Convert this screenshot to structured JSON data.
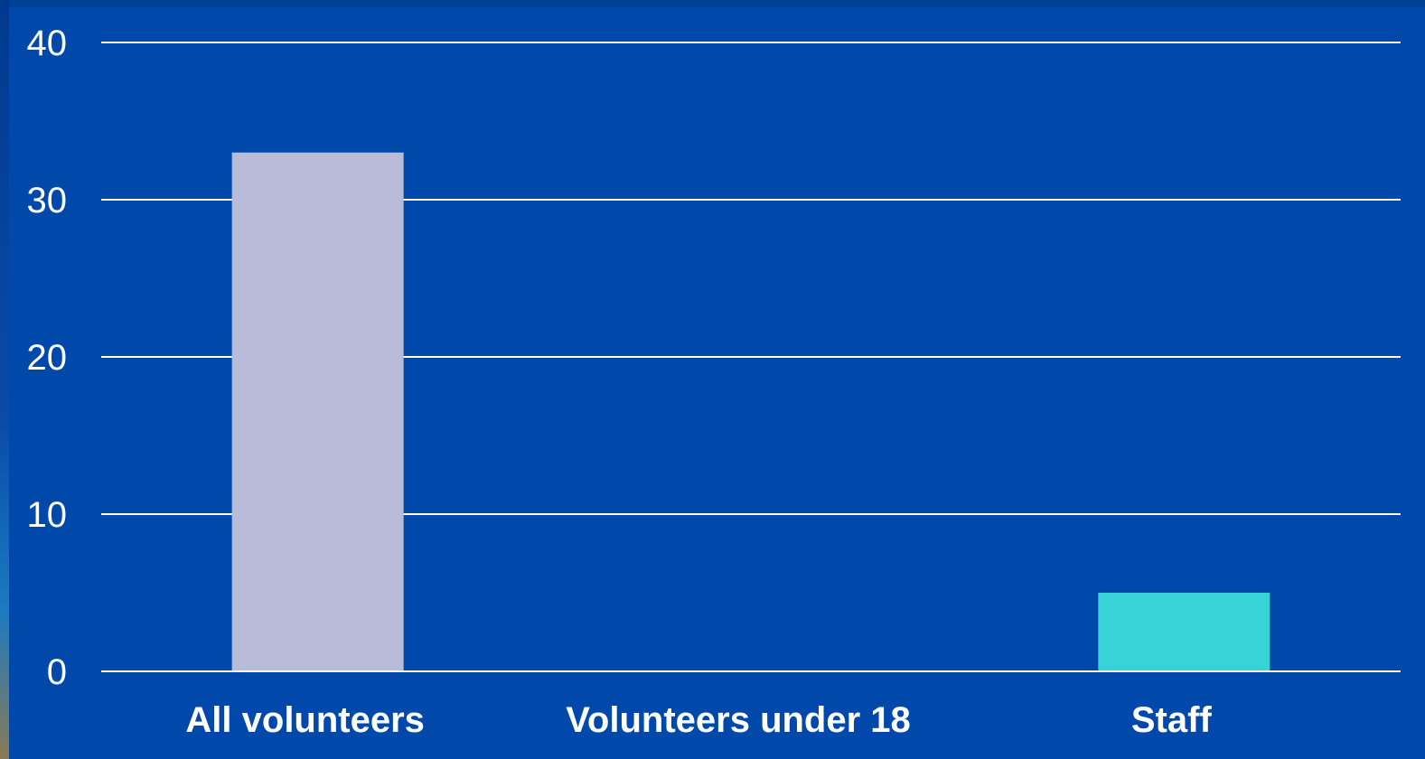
{
  "chart_data": {
    "type": "bar",
    "categories": [
      "All volunteers",
      "Volunteers under 18",
      "Staff"
    ],
    "values": [
      33,
      0,
      5
    ],
    "colors": [
      "#B8BCD8",
      "#4472C4",
      "#37D3D7"
    ],
    "ylim": [
      0,
      40
    ],
    "yticks": [
      "0",
      "10",
      "20",
      "30",
      "40"
    ],
    "grid": true,
    "title": "",
    "xlabel": "",
    "ylabel": "",
    "background": "#0049AB",
    "gridline_color": "#FFFFFF",
    "text_color": "#FFFFFF"
  }
}
